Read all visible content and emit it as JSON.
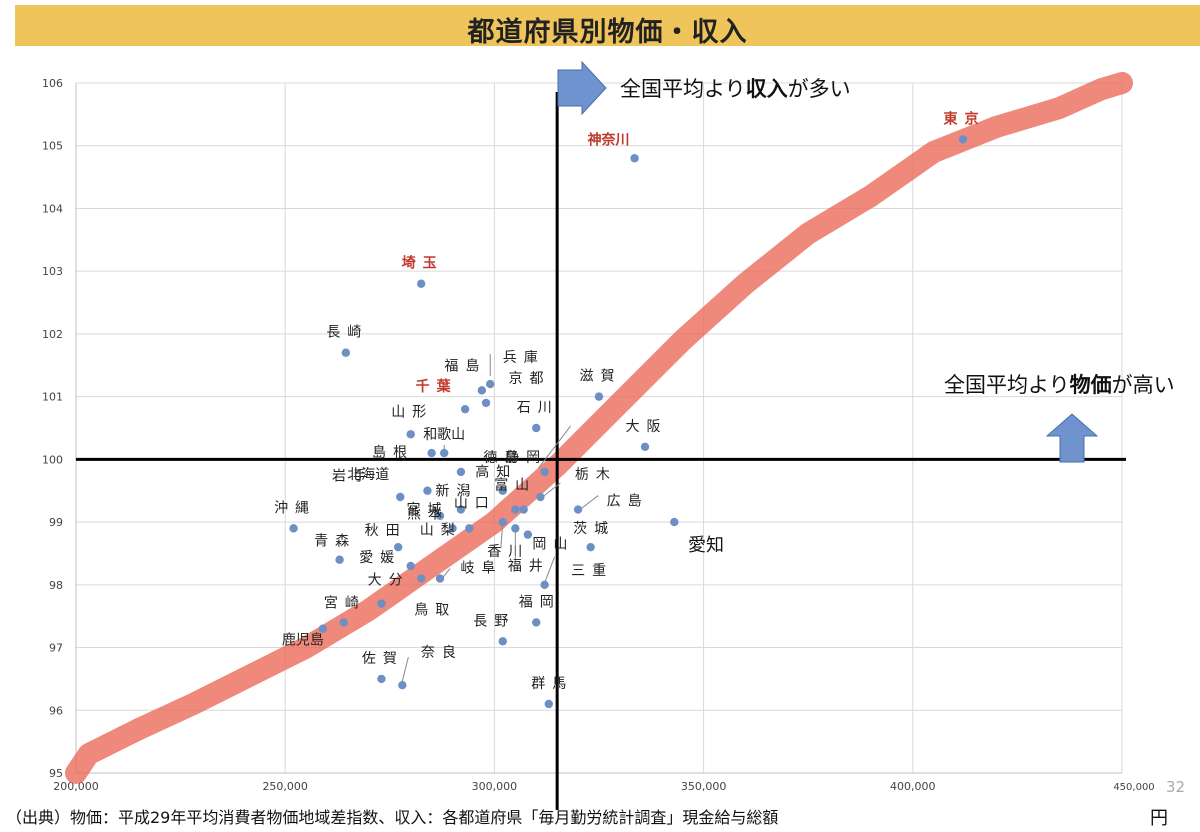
{
  "title": "都道府県別物価・収入",
  "footer": "（出典）物価：平成29年平均消費者物価地域差指数、収入：各都道府県「毎月勤労統計調査」現金給与総額",
  "page_number": "32",
  "unit": "円",
  "colors": {
    "point": "#6e8fc4",
    "highlight": "#c0392b",
    "trend": "#ea6b5b",
    "arrow": "#6f93cf",
    "title_bar": "#efc45a"
  },
  "chart_data": {
    "type": "scatter",
    "title": "",
    "xlabel": "円",
    "ylabel": "",
    "xlim": [
      200000,
      450000
    ],
    "ylim": [
      95,
      106
    ],
    "x_ticks": [
      200000,
      250000,
      300000,
      350000,
      400000,
      450000
    ],
    "x_tick_labels": [
      "200,000",
      "250,000",
      "300,000",
      "350,000",
      "400,000",
      "450,000"
    ],
    "y_ticks": [
      95,
      96,
      97,
      98,
      99,
      100,
      101,
      102,
      103,
      104,
      105,
      106
    ],
    "y_tick_labels": [
      "95",
      "96",
      "97",
      "98",
      "99",
      "100",
      "101",
      "102",
      "103",
      "104",
      "105",
      "106"
    ],
    "grid": true,
    "avg_income": 315000,
    "avg_price": 100,
    "annotations": {
      "income_high": {
        "text": "全国平均より",
        "bold": "収入",
        "suffix": "が多い"
      },
      "price_high": {
        "text": "全国平均より",
        "bold": "物価",
        "suffix": "が高い"
      },
      "aichi": "愛知"
    },
    "trend_line": {
      "x": [
        200000,
        203000,
        215000,
        228000,
        240000,
        255000,
        270000,
        285000,
        300000,
        315000,
        330000,
        345000,
        360000,
        375000,
        390000,
        405000,
        420000,
        435000,
        445000,
        450000
      ],
      "y": [
        95.0,
        95.3,
        95.7,
        96.1,
        96.5,
        97.0,
        97.6,
        98.3,
        99.0,
        99.9,
        100.9,
        101.9,
        102.8,
        103.6,
        104.2,
        104.9,
        105.3,
        105.6,
        105.9,
        106.0
      ]
    },
    "points": [
      {
        "name": "東京",
        "x": 412000,
        "y": 105.1,
        "highlight": true
      },
      {
        "name": "神奈川",
        "x": 333500,
        "y": 104.8,
        "highlight": true
      },
      {
        "name": "埼玉",
        "x": 282500,
        "y": 102.8,
        "highlight": true
      },
      {
        "name": "長崎",
        "x": 264500,
        "y": 101.7
      },
      {
        "name": "福島",
        "x": 297000,
        "y": 101.1
      },
      {
        "name": "兵庫",
        "x": 299000,
        "y": 101.2
      },
      {
        "name": "千葉",
        "x": 293000,
        "y": 100.8,
        "highlight": true
      },
      {
        "name": "京都",
        "x": 298000,
        "y": 100.9
      },
      {
        "name": "滋賀",
        "x": 325000,
        "y": 101.0
      },
      {
        "name": "石川",
        "x": 310000,
        "y": 100.5
      },
      {
        "name": "山形",
        "x": 280000,
        "y": 100.4
      },
      {
        "name": "大阪",
        "x": 336000,
        "y": 100.2
      },
      {
        "name": "島根",
        "x": 285000,
        "y": 100.1
      },
      {
        "name": "和歌山",
        "x": 288000,
        "y": 100.1
      },
      {
        "name": "徳島",
        "x": 292000,
        "y": 99.8
      },
      {
        "name": "静岡",
        "x": 312000,
        "y": 99.8
      },
      {
        "name": "高知",
        "x": 302000,
        "y": 99.5
      },
      {
        "name": "岩手",
        "x": 284000,
        "y": 99.5
      },
      {
        "name": "北海道",
        "x": 277500,
        "y": 99.4
      },
      {
        "name": "栃木",
        "x": 311000,
        "y": 99.4
      },
      {
        "name": "新潟",
        "x": 292000,
        "y": 99.2
      },
      {
        "name": "富山",
        "x": 307000,
        "y": 99.2
      },
      {
        "name": "広島",
        "x": 320000,
        "y": 99.2
      },
      {
        "name": "宮城",
        "x": 287000,
        "y": 99.1
      },
      {
        "name": "山口",
        "x": 305000,
        "y": 99.2
      },
      {
        "name": "愛知",
        "x": 343000,
        "y": 99.0
      },
      {
        "name": "沖縄",
        "x": 252000,
        "y": 98.9
      },
      {
        "name": "熊本",
        "x": 290000,
        "y": 98.9
      },
      {
        "name": "山梨",
        "x": 294000,
        "y": 98.9
      },
      {
        "name": "香川",
        "x": 302000,
        "y": 99.0
      },
      {
        "name": "福井",
        "x": 305000,
        "y": 98.9
      },
      {
        "name": "岡山",
        "x": 308000,
        "y": 98.8
      },
      {
        "name": "茨城",
        "x": 323000,
        "y": 98.6
      },
      {
        "name": "青森",
        "x": 263000,
        "y": 98.4
      },
      {
        "name": "秋田",
        "x": 277000,
        "y": 98.6
      },
      {
        "name": "愛媛",
        "x": 280000,
        "y": 98.3
      },
      {
        "name": "岐阜",
        "x": 287000,
        "y": 98.1
      },
      {
        "name": "大分",
        "x": 282500,
        "y": 98.1
      },
      {
        "name": "三重",
        "x": 312000,
        "y": 98.0
      },
      {
        "name": "宮崎",
        "x": 273000,
        "y": 97.7
      },
      {
        "name": "鳥取",
        "x": 264000,
        "y": 97.4
      },
      {
        "name": "福岡",
        "x": 310000,
        "y": 97.4
      },
      {
        "name": "長野",
        "x": 302000,
        "y": 97.1
      },
      {
        "name": "鹿児島",
        "x": 259000,
        "y": 97.3
      },
      {
        "name": "佐賀",
        "x": 273000,
        "y": 96.5
      },
      {
        "name": "奈良",
        "x": 278000,
        "y": 96.4
      },
      {
        "name": "群馬",
        "x": 313000,
        "y": 96.1
      }
    ]
  }
}
